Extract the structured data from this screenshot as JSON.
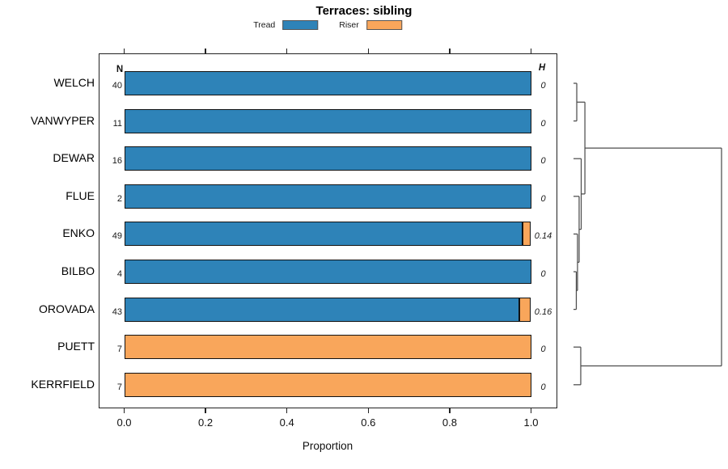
{
  "title": "Terraces: sibling",
  "legend": {
    "items": [
      {
        "label": "Tread",
        "color": "#2e83b8"
      },
      {
        "label": "Riser",
        "color": "#f9a65b"
      }
    ]
  },
  "columns": {
    "n_header": "N",
    "h_header": "H"
  },
  "x_axis": {
    "title": "Proportion",
    "tick_labels": [
      "0.0",
      "0.2",
      "0.4",
      "0.6",
      "0.8",
      "1.0"
    ],
    "tick_values": [
      0,
      0.2,
      0.4,
      0.6,
      0.8,
      1.0
    ],
    "range": [
      0,
      1
    ]
  },
  "rows": [
    {
      "name": "WELCH",
      "n": "40",
      "h": "0",
      "tread": 1,
      "riser": 0
    },
    {
      "name": "VANWYPER",
      "n": "11",
      "h": "0",
      "tread": 1,
      "riser": 0
    },
    {
      "name": "DEWAR",
      "n": "16",
      "h": "0",
      "tread": 1,
      "riser": 0
    },
    {
      "name": "FLUE",
      "n": "2",
      "h": "0",
      "tread": 1,
      "riser": 0
    },
    {
      "name": "ENKO",
      "n": "49",
      "h": "0.14",
      "tread": 0.979,
      "riser": 0.021
    },
    {
      "name": "BILBO",
      "n": "4",
      "h": "0",
      "tread": 1,
      "riser": 0
    },
    {
      "name": "OROVADA",
      "n": "43",
      "h": "0.16",
      "tread": 0.972,
      "riser": 0.028
    },
    {
      "name": "PUETT",
      "n": "7",
      "h": "0",
      "tread": 0,
      "riser": 1
    },
    {
      "name": "KERRFIELD",
      "n": "7",
      "h": "0",
      "tread": 0,
      "riser": 1
    }
  ],
  "colors": {
    "tread": "#2e83b8",
    "riser": "#f9a65b",
    "bar_border": "#121212",
    "axis": "#222222",
    "dendrogram": "#4d4d4d"
  },
  "dendrogram": {
    "height": 1.0,
    "children": [
      {
        "height": 0.077,
        "children": [
          {
            "height": 0.022,
            "children": [
              {
                "leaf": "WELCH"
              },
              {
                "leaf": "VANWYPER"
              }
            ]
          },
          {
            "height": 0.052,
            "children": [
              {
                "leaf": "DEWAR"
              },
              {
                "height": 0.038,
                "children": [
                  {
                    "leaf": "FLUE"
                  },
                  {
                    "height": 0.027,
                    "children": [
                      {
                        "leaf": "ENKO"
                      },
                      {
                        "height": 0.019,
                        "children": [
                          {
                            "leaf": "BILBO"
                          },
                          {
                            "leaf": "OROVADA"
                          }
                        ]
                      }
                    ]
                  }
                ]
              }
            ]
          }
        ]
      },
      {
        "height": 0.049,
        "children": [
          {
            "leaf": "PUETT"
          },
          {
            "leaf": "KERRFIELD"
          }
        ]
      }
    ]
  },
  "chart_data": {
    "type": "bar",
    "orientation": "horizontal",
    "stacked": true,
    "title": "Terraces: sibling",
    "categories": [
      "WELCH",
      "VANWYPER",
      "DEWAR",
      "FLUE",
      "ENKO",
      "BILBO",
      "OROVADA",
      "PUETT",
      "KERRFIELD"
    ],
    "series": [
      {
        "name": "Tread",
        "color": "#2e83b8",
        "values": [
          1,
          1,
          1,
          1,
          0.979,
          1,
          0.972,
          0,
          0
        ]
      },
      {
        "name": "Riser",
        "color": "#f9a65b",
        "values": [
          0,
          0,
          0,
          0,
          0.021,
          0,
          0.028,
          1,
          1
        ]
      }
    ],
    "n_values": [
      40,
      11,
      16,
      2,
      49,
      4,
      43,
      7,
      7
    ],
    "h_values": [
      0,
      0,
      0,
      0,
      0.14,
      0,
      0.16,
      0,
      0
    ],
    "xlabel": "Proportion",
    "ylabel": "",
    "xlim": [
      0,
      1
    ],
    "x_ticks": [
      0.0,
      0.2,
      0.4,
      0.6,
      0.8,
      1.0
    ],
    "legend_position": "top",
    "grid": false,
    "annotations": "row dendrogram drawn on right side; N = sample size column, H = diversity column"
  }
}
